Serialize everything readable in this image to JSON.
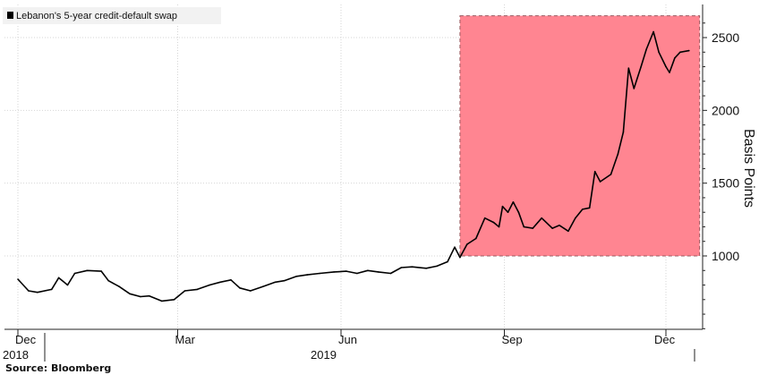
{
  "source": "Source: Bloomberg",
  "chart_data": {
    "type": "line",
    "title": "",
    "xlabel": "",
    "ylabel": "Basis Points",
    "ylim": [
      450,
      2650
    ],
    "x_range": [
      "2018-12-01",
      "2019-12-20"
    ],
    "y_ticks": [
      1000,
      1500,
      2000,
      2500
    ],
    "x_ticks": [
      {
        "label": "Dec",
        "sub": "2018",
        "date": "2018-12-01"
      },
      {
        "label": "Mar",
        "sub": "",
        "date": "2019-03-01"
      },
      {
        "label": "Jun",
        "sub": "2019",
        "date": "2019-06-01"
      },
      {
        "label": "Sep",
        "sub": "",
        "date": "2019-09-01"
      },
      {
        "label": "Dec",
        "sub": "",
        "date": "2019-12-01"
      }
    ],
    "grid": true,
    "legend_position": "top-left",
    "highlight_region": {
      "x": [
        "2019-08-07",
        "2019-12-20"
      ],
      "y": [
        1000,
        2650
      ],
      "color": "#ff8591"
    },
    "series": [
      {
        "name": "Lebanon's 5-year credit-default swap",
        "color": "#000000",
        "points": [
          [
            "2018-12-01",
            840
          ],
          [
            "2018-12-07",
            760
          ],
          [
            "2018-12-12",
            750
          ],
          [
            "2018-12-20",
            770
          ],
          [
            "2018-12-24",
            850
          ],
          [
            "2018-12-29",
            800
          ],
          [
            "2019-01-02",
            880
          ],
          [
            "2019-01-09",
            900
          ],
          [
            "2019-01-17",
            895
          ],
          [
            "2019-01-21",
            830
          ],
          [
            "2019-01-27",
            790
          ],
          [
            "2019-02-02",
            740
          ],
          [
            "2019-02-08",
            720
          ],
          [
            "2019-02-13",
            725
          ],
          [
            "2019-02-20",
            690
          ],
          [
            "2019-02-27",
            700
          ],
          [
            "2019-03-05",
            760
          ],
          [
            "2019-03-12",
            770
          ],
          [
            "2019-03-19",
            800
          ],
          [
            "2019-03-25",
            820
          ],
          [
            "2019-03-31",
            835
          ],
          [
            "2019-04-05",
            780
          ],
          [
            "2019-04-11",
            760
          ],
          [
            "2019-04-18",
            790
          ],
          [
            "2019-04-25",
            820
          ],
          [
            "2019-04-30",
            830
          ],
          [
            "2019-05-07",
            860
          ],
          [
            "2019-05-13",
            870
          ],
          [
            "2019-05-20",
            880
          ],
          [
            "2019-05-28",
            890
          ],
          [
            "2019-06-04",
            895
          ],
          [
            "2019-06-10",
            880
          ],
          [
            "2019-06-16",
            900
          ],
          [
            "2019-06-22",
            890
          ],
          [
            "2019-06-29",
            880
          ],
          [
            "2019-07-05",
            920
          ],
          [
            "2019-07-11",
            925
          ],
          [
            "2019-07-19",
            915
          ],
          [
            "2019-07-25",
            930
          ],
          [
            "2019-07-31",
            960
          ],
          [
            "2019-08-04",
            1060
          ],
          [
            "2019-08-07",
            990
          ],
          [
            "2019-08-11",
            1080
          ],
          [
            "2019-08-16",
            1120
          ],
          [
            "2019-08-21",
            1260
          ],
          [
            "2019-08-26",
            1230
          ],
          [
            "2019-08-29",
            1200
          ],
          [
            "2019-08-31",
            1340
          ],
          [
            "2019-09-03",
            1300
          ],
          [
            "2019-09-06",
            1370
          ],
          [
            "2019-09-09",
            1300
          ],
          [
            "2019-09-12",
            1200
          ],
          [
            "2019-09-17",
            1190
          ],
          [
            "2019-09-22",
            1260
          ],
          [
            "2019-09-28",
            1190
          ],
          [
            "2019-10-02",
            1210
          ],
          [
            "2019-10-07",
            1170
          ],
          [
            "2019-10-11",
            1260
          ],
          [
            "2019-10-15",
            1320
          ],
          [
            "2019-10-19",
            1330
          ],
          [
            "2019-10-22",
            1580
          ],
          [
            "2019-10-25",
            1510
          ],
          [
            "2019-10-31",
            1560
          ],
          [
            "2019-11-04",
            1700
          ],
          [
            "2019-11-07",
            1850
          ],
          [
            "2019-11-10",
            2290
          ],
          [
            "2019-11-13",
            2150
          ],
          [
            "2019-11-17",
            2300
          ],
          [
            "2019-11-20",
            2420
          ],
          [
            "2019-11-24",
            2540
          ],
          [
            "2019-11-27",
            2400
          ],
          [
            "2019-12-01",
            2300
          ],
          [
            "2019-12-03",
            2260
          ],
          [
            "2019-12-06",
            2360
          ],
          [
            "2019-12-09",
            2400
          ],
          [
            "2019-12-14",
            2410
          ]
        ]
      }
    ]
  }
}
